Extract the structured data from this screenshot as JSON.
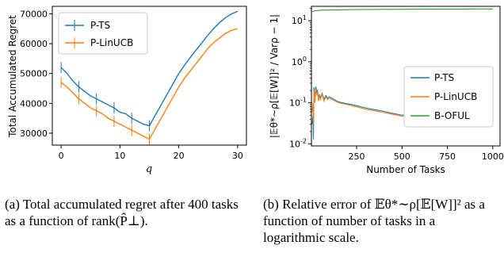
{
  "chart_data": [
    {
      "type": "line",
      "ylabel": "Total Accumulated Regret",
      "xlabel": "q",
      "xlim": [
        -1.5,
        31.5
      ],
      "ylim": [
        26000,
        72500
      ],
      "xticks": [
        "0",
        "10",
        "20",
        "30"
      ],
      "yticks": [
        "30000",
        "40000",
        "50000",
        "60000",
        "70000"
      ],
      "legend_position": "top-left",
      "error_bars": true,
      "x": [
        0,
        1,
        2,
        3,
        4,
        5,
        6,
        7,
        8,
        9,
        10,
        11,
        12,
        13,
        14,
        15,
        16,
        17,
        18,
        19,
        20,
        21,
        22,
        23,
        24,
        25,
        26,
        27,
        28,
        29,
        30
      ],
      "series": [
        {
          "name": "P-TS",
          "color": "#1f77b4",
          "values": [
            52000,
            50000,
            47500,
            45500,
            44000,
            42500,
            41500,
            40500,
            39500,
            38500,
            37000,
            36500,
            35000,
            34000,
            33000,
            32500,
            36000,
            39500,
            43000,
            46500,
            50000,
            52800,
            55500,
            58000,
            60500,
            63000,
            65200,
            67200,
            68800,
            70000,
            70800
          ]
        },
        {
          "name": "P-LinUCB",
          "color": "#ff7f0e",
          "values": [
            47000,
            45500,
            43500,
            41500,
            40000,
            38500,
            37500,
            36500,
            35000,
            34000,
            33000,
            32000,
            31000,
            30000,
            29000,
            28000,
            31500,
            35000,
            38500,
            42000,
            45500,
            48500,
            51000,
            53500,
            56000,
            58500,
            60500,
            62000,
            63500,
            64500,
            65000
          ]
        }
      ]
    },
    {
      "type": "line",
      "ylabel": "|𝔼θ*∼ρ[𝔼[W]]² / Varρ − 1|",
      "xlabel": "Number of Tasks",
      "log_y": true,
      "xlim": [
        1,
        1040
      ],
      "ylim_log10": [
        -2.05,
        1.35
      ],
      "xticks": [
        "250",
        "500",
        "750",
        "1000"
      ],
      "yticks": [
        "10^1",
        "10^0",
        "10^-1",
        "10^-2"
      ],
      "legend_position": "center-right",
      "series": [
        {
          "name": "P-TS",
          "color": "#1f77b4",
          "x": [
            5,
            10,
            12,
            15,
            20,
            25,
            30,
            35,
            40,
            45,
            50,
            60,
            70,
            80,
            90,
            100,
            150,
            200,
            250,
            300,
            350,
            400,
            450,
            500,
            550,
            600,
            650,
            700,
            750,
            800,
            850,
            900,
            950,
            1000
          ],
          "values": [
            0.03,
            0.05,
            0.013,
            0.24,
            0.12,
            0.25,
            0.18,
            0.2,
            0.12,
            0.16,
            0.13,
            0.17,
            0.12,
            0.15,
            0.13,
            0.14,
            0.105,
            0.095,
            0.085,
            0.075,
            0.068,
            0.062,
            0.055,
            0.05,
            0.052,
            0.056,
            0.06,
            0.058,
            0.053,
            0.045,
            0.042,
            0.042,
            0.041,
            0.041
          ]
        },
        {
          "name": "P-LinUCB",
          "color": "#ff7f0e",
          "x": [
            5,
            10,
            12,
            15,
            20,
            25,
            30,
            35,
            40,
            45,
            50,
            60,
            70,
            80,
            90,
            100,
            150,
            200,
            250,
            300,
            350,
            400,
            450,
            500,
            550,
            600,
            650,
            700,
            750,
            800,
            850,
            900,
            950,
            1000
          ],
          "values": [
            0.06,
            0.1,
            0.03,
            0.2,
            0.1,
            0.21,
            0.16,
            0.18,
            0.11,
            0.15,
            0.12,
            0.16,
            0.11,
            0.14,
            0.12,
            0.13,
            0.1,
            0.09,
            0.08,
            0.07,
            0.064,
            0.058,
            0.052,
            0.047,
            0.049,
            0.053,
            0.057,
            0.055,
            0.05,
            0.043,
            0.04,
            0.04,
            0.039,
            0.039
          ]
        },
        {
          "name": "B-OFUL",
          "color": "#2ca02c",
          "x": [
            5,
            20,
            50,
            100,
            200,
            300,
            400,
            500,
            600,
            700,
            800,
            900,
            1000
          ],
          "values": [
            16.5,
            17.5,
            18,
            18.3,
            18.6,
            18.8,
            18.9,
            19.0,
            19.1,
            19.2,
            19.2,
            19.3,
            19.3
          ]
        }
      ]
    }
  ],
  "captions": {
    "a": "(a) Total accumulated regret after 400 tasks as a function of rank(P̂⊥).",
    "b": "(b) Relative error of 𝔼θ*∼ρ[𝔼[W]]² as a function of number of tasks in a logarithmic scale."
  }
}
